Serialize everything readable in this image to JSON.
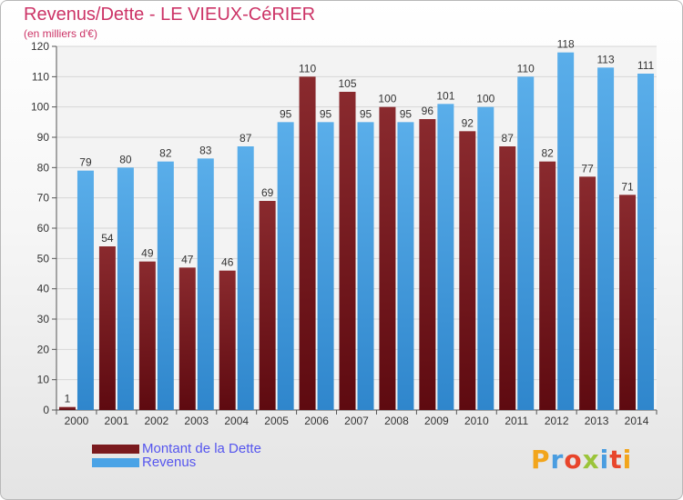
{
  "header": {
    "title": "Revenus/Dette - LE VIEUX-CéRIER",
    "subtitle": "(en milliers d'€)"
  },
  "legend": {
    "items": [
      {
        "label": "Montant de la Dette",
        "color": "#7a1a1e"
      },
      {
        "label": "Revenus",
        "color": "#4aa3e6"
      }
    ]
  },
  "logo": {
    "text": "Proxiti",
    "letters": [
      "P",
      "r",
      "o",
      "x",
      "i",
      "t",
      "i"
    ],
    "colors": [
      "#f2a51c",
      "#4a9de0",
      "#e8452b",
      "#9bc43a",
      "#4a9de0",
      "#e8452b",
      "#f2a51c"
    ]
  },
  "chart_data": {
    "type": "bar",
    "title": "Revenus/Dette - LE VIEUX-CéRIER",
    "subtitle": "(en milliers d'€)",
    "categories": [
      "2000",
      "2001",
      "2002",
      "2003",
      "2004",
      "2005",
      "2006",
      "2007",
      "2008",
      "2009",
      "2010",
      "2011",
      "2012",
      "2013",
      "2014"
    ],
    "series": [
      {
        "name": "Montant de la Dette",
        "color": "#7a1a1e",
        "values": [
          1,
          54,
          49,
          47,
          46,
          69,
          110,
          105,
          100,
          96,
          92,
          87,
          82,
          77,
          71
        ]
      },
      {
        "name": "Revenus",
        "color": "#4aa3e6",
        "values": [
          79,
          80,
          82,
          83,
          87,
          95,
          95,
          95,
          95,
          101,
          100,
          110,
          118,
          113,
          111
        ]
      }
    ],
    "ylim": [
      0,
      120
    ],
    "yticks": [
      0,
      10,
      20,
      30,
      40,
      50,
      60,
      70,
      80,
      90,
      100,
      110,
      120
    ],
    "grid": true,
    "legend_position": "bottom-left"
  }
}
